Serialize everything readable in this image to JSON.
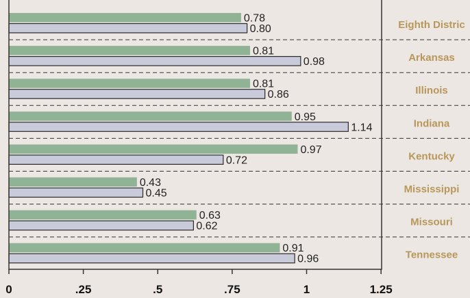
{
  "colors": {
    "background": "#ECE7E2",
    "series_a": "#8FB394",
    "series_b": "#C9CADA",
    "bar_stroke": "#2A2A2A",
    "state_label": "#B8975A",
    "divider": "#333333"
  },
  "chart_data": {
    "type": "bar",
    "orientation": "horizontal",
    "categories": [
      "Eighth Distric",
      "Arkansas",
      "Illinois",
      "Indiana",
      "Kentucky",
      "Mississippi",
      "Missouri",
      "Tennessee"
    ],
    "series": [
      {
        "values": [
          0.78,
          0.81,
          0.81,
          0.95,
          0.97,
          0.43,
          0.63,
          0.91
        ]
      },
      {
        "values": [
          0.8,
          0.98,
          0.86,
          1.14,
          0.72,
          0.45,
          0.62,
          0.96
        ]
      }
    ],
    "value_labels": [
      [
        "0.78",
        "0.81",
        "0.81",
        "0.95",
        "0.97",
        "0.43",
        "0.63",
        "0.91"
      ],
      [
        "0.80",
        "0.98",
        "0.86",
        "1.14",
        "0.72",
        "0.45",
        "0.62",
        "0.96"
      ]
    ],
    "xlim": [
      0,
      1.25
    ],
    "x_ticks": [
      0,
      0.25,
      0.5,
      0.75,
      1,
      1.25
    ],
    "x_tick_labels": [
      "0",
      ".25",
      ".5",
      ".75",
      "1",
      "1.25"
    ],
    "legend": "none",
    "grid": false
  }
}
